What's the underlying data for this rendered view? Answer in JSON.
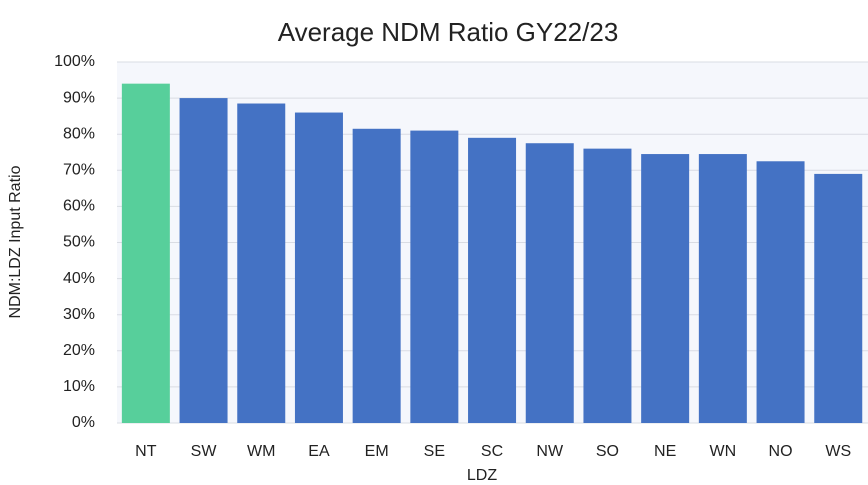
{
  "chart_data": {
    "type": "bar",
    "title": "Average NDM Ratio GY22/23",
    "x_label": "LDZ",
    "y_label": "NDM:LDZ Input Ratio",
    "categories": [
      "NT",
      "SW",
      "WM",
      "EA",
      "EM",
      "SE",
      "SC",
      "NW",
      "SO",
      "NE",
      "WN",
      "NO",
      "WS"
    ],
    "values": [
      94,
      90,
      88.5,
      86,
      81.5,
      81,
      79,
      77.5,
      76,
      74.5,
      74.5,
      72.5,
      69
    ],
    "colors": [
      "#57cf9b",
      "#4472c4",
      "#4472c4",
      "#4472c4",
      "#4472c4",
      "#4472c4",
      "#4472c4",
      "#4472c4",
      "#4472c4",
      "#4472c4",
      "#4472c4",
      "#4472c4",
      "#4472c4"
    ],
    "ylim": [
      0,
      100
    ],
    "yticks": [
      {
        "value": 0,
        "label": "0%"
      },
      {
        "value": 10,
        "label": "10%"
      },
      {
        "value": 20,
        "label": "20%"
      },
      {
        "value": 30,
        "label": "30%"
      },
      {
        "value": 40,
        "label": "40%"
      },
      {
        "value": 50,
        "label": "50%"
      },
      {
        "value": 60,
        "label": "60%"
      },
      {
        "value": 70,
        "label": "70%"
      },
      {
        "value": 80,
        "label": "80%"
      },
      {
        "value": 90,
        "label": "90%"
      },
      {
        "value": 100,
        "label": "100%"
      }
    ],
    "grid": true
  }
}
